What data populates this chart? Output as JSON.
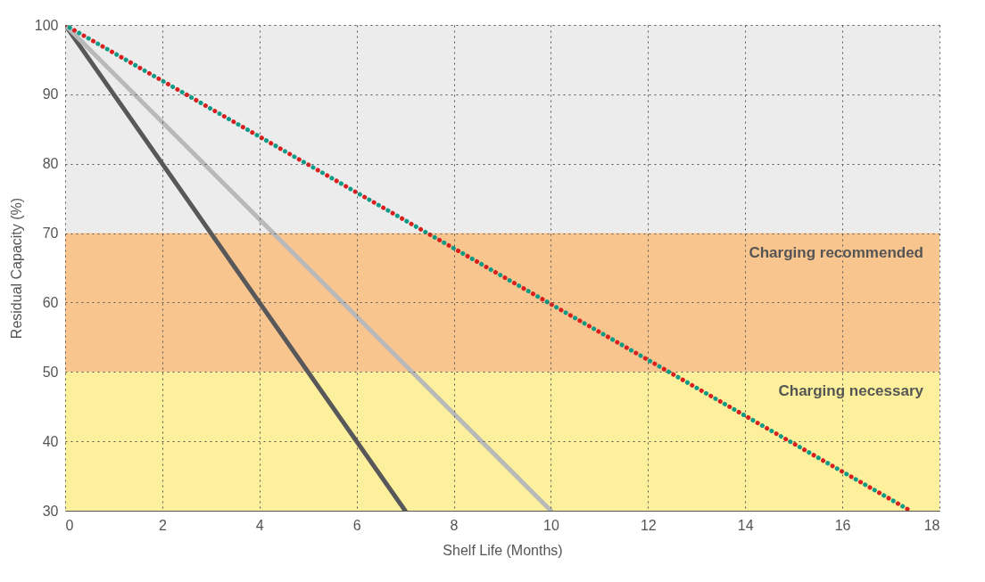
{
  "chart_data": {
    "type": "line",
    "xlabel": "Shelf Life (Months)",
    "ylabel": "Residual Capacity (%)",
    "xlim": [
      0,
      18
    ],
    "ylim": [
      30,
      100
    ],
    "xticks": [
      0,
      2,
      4,
      6,
      8,
      10,
      12,
      14,
      16,
      18
    ],
    "yticks": [
      30,
      40,
      50,
      60,
      70,
      80,
      90,
      100
    ],
    "grid": true,
    "bands": [
      {
        "axis": "y",
        "from": 70,
        "to": 100,
        "label": null,
        "color": "#ececec"
      },
      {
        "axis": "y",
        "from": 50,
        "to": 70,
        "label": "Charging recommended",
        "color": "#f9c58f"
      },
      {
        "axis": "y",
        "from": 30,
        "to": 50,
        "label": "Charging necessary",
        "color": "#fcf09c"
      }
    ],
    "series": [
      {
        "color": "#58585a",
        "x": [
          0,
          7
        ],
        "values": [
          100,
          30
        ],
        "line_style": "solid"
      },
      {
        "color": "#b9b9b9",
        "x": [
          0,
          10
        ],
        "values": [
          100,
          30
        ],
        "line_style": "solid"
      },
      {
        "color": "#d7201f",
        "x": [
          0,
          17.4
        ],
        "values": [
          100,
          30
        ],
        "line_style": "dotted"
      },
      {
        "color": "#0e9a86",
        "x": [
          0,
          17.4
        ],
        "values": [
          100,
          30
        ],
        "line_style": "dotted"
      }
    ]
  }
}
